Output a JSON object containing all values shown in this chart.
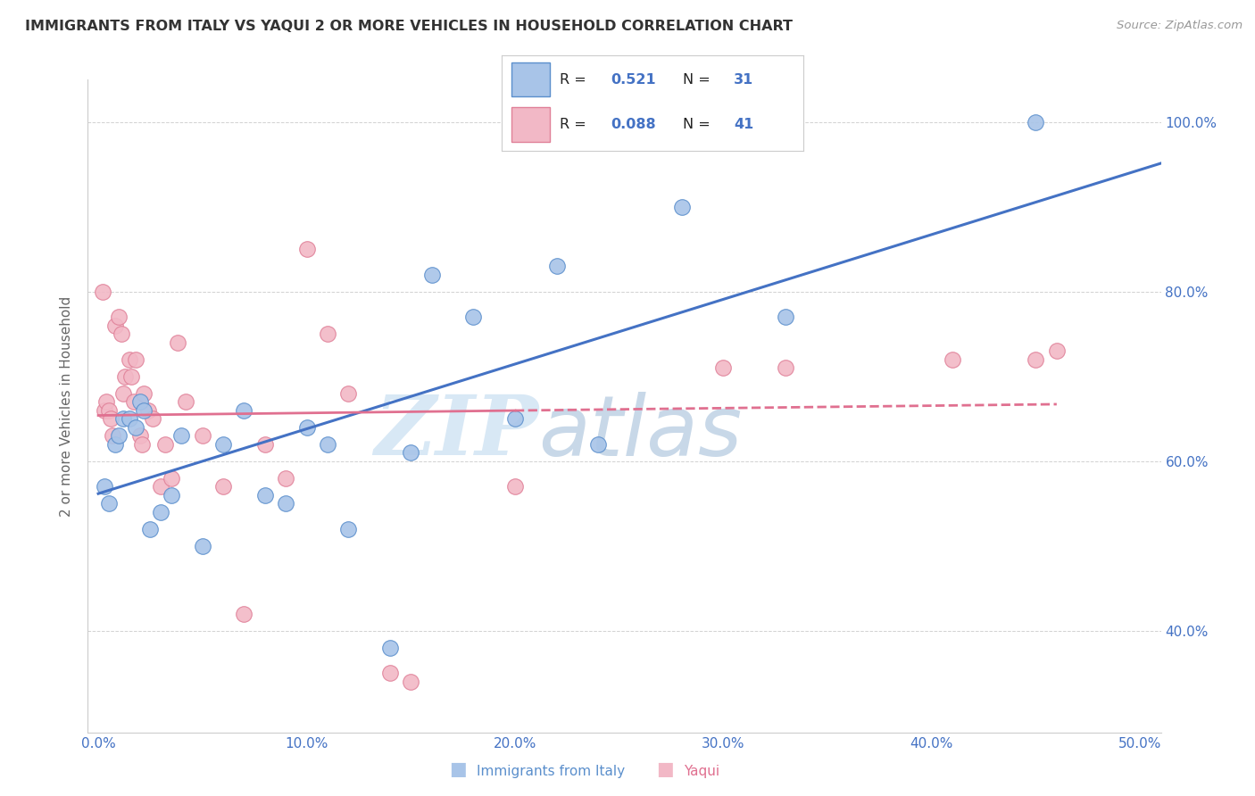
{
  "title": "IMMIGRANTS FROM ITALY VS YAQUI 2 OR MORE VEHICLES IN HOUSEHOLD CORRELATION CHART",
  "source": "Source: ZipAtlas.com",
  "ylabel": "2 or more Vehicles in Household",
  "legend_label1": "Immigrants from Italy",
  "legend_label2": "Yaqui",
  "R1": 0.521,
  "N1": 31,
  "R2": 0.088,
  "N2": 41,
  "xlim": [
    -0.5,
    51.0
  ],
  "ylim": [
    28.0,
    105.0
  ],
  "xticks": [
    0.0,
    10.0,
    20.0,
    30.0,
    40.0,
    50.0
  ],
  "yticks": [
    40.0,
    60.0,
    80.0,
    100.0
  ],
  "xtick_labels": [
    "0.0%",
    "10.0%",
    "20.0%",
    "30.0%",
    "40.0%",
    "50.0%"
  ],
  "ytick_labels": [
    "40.0%",
    "60.0%",
    "80.0%",
    "100.0%"
  ],
  "color_blue": "#A8C4E8",
  "color_pink": "#F2B8C6",
  "edge_blue": "#5B8FCC",
  "edge_pink": "#E08098",
  "line_blue": "#4472C4",
  "line_pink": "#E07090",
  "background": "#FFFFFF",
  "blue_x": [
    0.3,
    0.5,
    0.8,
    1.0,
    1.2,
    1.5,
    1.8,
    2.0,
    2.2,
    2.5,
    3.0,
    3.5,
    4.0,
    5.0,
    6.0,
    7.0,
    8.0,
    9.0,
    10.0,
    11.0,
    12.0,
    14.0,
    15.0,
    16.0,
    18.0,
    20.0,
    22.0,
    24.0,
    28.0,
    33.0,
    45.0
  ],
  "blue_y": [
    57.0,
    55.0,
    62.0,
    63.0,
    65.0,
    65.0,
    64.0,
    67.0,
    66.0,
    52.0,
    54.0,
    56.0,
    63.0,
    50.0,
    62.0,
    66.0,
    56.0,
    55.0,
    64.0,
    62.0,
    52.0,
    38.0,
    61.0,
    82.0,
    77.0,
    65.0,
    83.0,
    62.0,
    90.0,
    77.0,
    100.0
  ],
  "pink_x": [
    0.2,
    0.3,
    0.4,
    0.5,
    0.6,
    0.7,
    0.8,
    1.0,
    1.1,
    1.2,
    1.3,
    1.5,
    1.6,
    1.7,
    1.8,
    2.0,
    2.1,
    2.2,
    2.4,
    2.6,
    3.0,
    3.2,
    3.5,
    3.8,
    4.2,
    5.0,
    6.0,
    7.0,
    8.0,
    9.0,
    10.0,
    11.0,
    12.0,
    14.0,
    15.0,
    20.0,
    30.0,
    33.0,
    41.0,
    45.0,
    46.0
  ],
  "pink_y": [
    80.0,
    66.0,
    67.0,
    66.0,
    65.0,
    63.0,
    76.0,
    77.0,
    75.0,
    68.0,
    70.0,
    72.0,
    70.0,
    67.0,
    72.0,
    63.0,
    62.0,
    68.0,
    66.0,
    65.0,
    57.0,
    62.0,
    58.0,
    74.0,
    67.0,
    63.0,
    57.0,
    42.0,
    62.0,
    58.0,
    85.0,
    75.0,
    68.0,
    35.0,
    34.0,
    57.0,
    71.0,
    71.0,
    72.0,
    72.0,
    73.0
  ]
}
